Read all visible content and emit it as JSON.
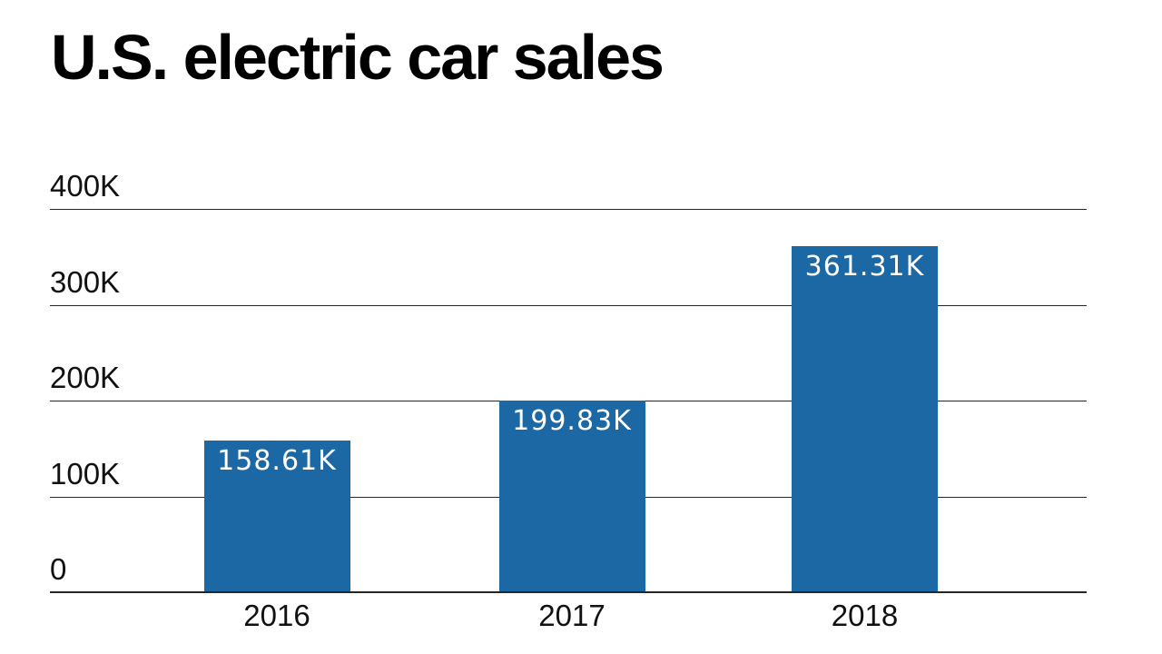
{
  "title": "U.S. electric car sales",
  "chart_data": {
    "type": "bar",
    "title": "U.S. electric car sales",
    "categories": [
      "2016",
      "2017",
      "2018"
    ],
    "values": [
      158.61,
      199.83,
      361.31
    ],
    "value_labels": [
      "158.61K",
      "199.83K",
      "361.31K"
    ],
    "unit": "thousands of cars",
    "xlabel": "",
    "ylabel": "",
    "ylim": [
      0,
      400
    ],
    "yticks": [
      400,
      300,
      200,
      100,
      0
    ],
    "ytick_labels": [
      "400K",
      "300K",
      "200K",
      "100K",
      "0"
    ],
    "grid": true,
    "legend": "none",
    "bar_color": "#1b68a5",
    "value_label_color": "#ffffff",
    "gridline_color": "#262626"
  }
}
